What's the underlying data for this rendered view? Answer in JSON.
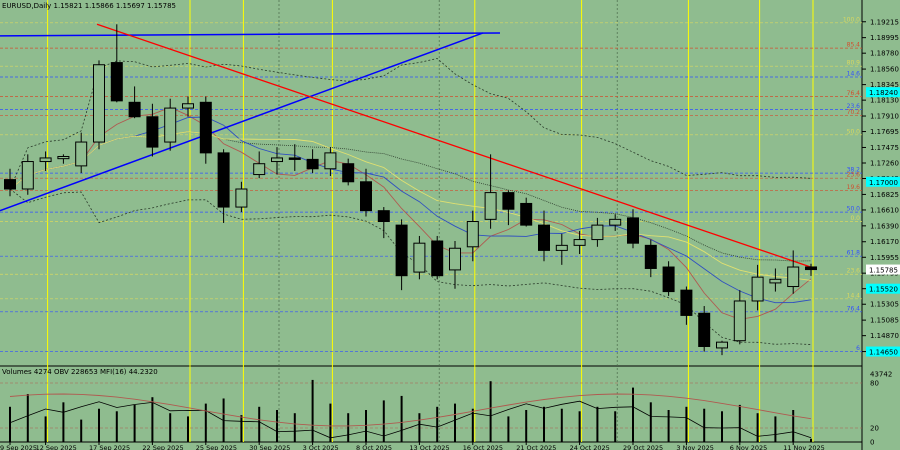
{
  "header": {
    "symbol_line": "EURUSD,Daily  1.15821 1.15866 1.15697 1.15785",
    "indicator_line": "Volumes 4274  OBV 228653  MFI(16) 44.2320"
  },
  "colors": {
    "background": "#8fbc8f",
    "bull_candle": "#8fbc8f",
    "bear_candle": "#000000",
    "red_trendline": "#ff0000",
    "blue_trendline": "#0000ff",
    "date_vline": "#ffff00",
    "price_highlight": "#00ffff"
  },
  "chart_data": {
    "type": "candlestick",
    "title": "EURUSD,Daily",
    "ohlc_last": {
      "open": 1.15821,
      "high": 1.15866,
      "low": 1.15697,
      "close": 1.15785
    },
    "y_axis_ticks": [
      "1.19215",
      "1.18995",
      "1.18780",
      "1.18560",
      "1.18345",
      "1.18130",
      "1.17910",
      "1.17695",
      "1.17475",
      "1.17260",
      "1.17045",
      "1.16825",
      "1.16610",
      "1.16390",
      "1.16170",
      "1.15955",
      "1.15735",
      "1.15520",
      "1.15305",
      "1.15085",
      "1.14870",
      "1.14650"
    ],
    "ylim": [
      1.1445,
      1.1935
    ],
    "highlighted_prices": [
      "1.18240",
      "1.17000",
      "1.15785",
      "1.15520",
      "1.14650"
    ],
    "x_axis_ticks": [
      "9 Sep 2025",
      "12 Sep 2025",
      "17 Sep 2025",
      "22 Sep 2025",
      "25 Sep 2025",
      "30 Sep 2025",
      "3 Oct 2025",
      "8 Oct 2025",
      "13 Oct 2025",
      "16 Oct 2025",
      "21 Oct 2025",
      "24 Oct 2025",
      "29 Oct 2025",
      "3 Nov 2025",
      "6 Nov 2025",
      "11 Nov 2025"
    ],
    "candles": [
      {
        "o": 1.1703,
        "h": 1.1718,
        "l": 1.168,
        "c": 1.169
      },
      {
        "o": 1.169,
        "h": 1.1738,
        "l": 1.1682,
        "c": 1.1728
      },
      {
        "o": 1.1728,
        "h": 1.1742,
        "l": 1.1715,
        "c": 1.1733
      },
      {
        "o": 1.1732,
        "h": 1.1738,
        "l": 1.1725,
        "c": 1.1735
      },
      {
        "o": 1.1722,
        "h": 1.1768,
        "l": 1.1712,
        "c": 1.1755
      },
      {
        "o": 1.1755,
        "h": 1.1868,
        "l": 1.1745,
        "c": 1.1862
      },
      {
        "o": 1.1865,
        "h": 1.1918,
        "l": 1.181,
        "c": 1.1812
      },
      {
        "o": 1.181,
        "h": 1.1832,
        "l": 1.1788,
        "c": 1.179
      },
      {
        "o": 1.179,
        "h": 1.1808,
        "l": 1.1735,
        "c": 1.1748
      },
      {
        "o": 1.1755,
        "h": 1.1815,
        "l": 1.1743,
        "c": 1.1802
      },
      {
        "o": 1.1802,
        "h": 1.1818,
        "l": 1.179,
        "c": 1.1808
      },
      {
        "o": 1.181,
        "h": 1.1818,
        "l": 1.1725,
        "c": 1.174
      },
      {
        "o": 1.174,
        "h": 1.1745,
        "l": 1.1643,
        "c": 1.1665
      },
      {
        "o": 1.1665,
        "h": 1.17,
        "l": 1.1658,
        "c": 1.169
      },
      {
        "o": 1.171,
        "h": 1.1742,
        "l": 1.1705,
        "c": 1.1725
      },
      {
        "o": 1.1728,
        "h": 1.1748,
        "l": 1.171,
        "c": 1.1733
      },
      {
        "o": 1.1733,
        "h": 1.1752,
        "l": 1.1715,
        "c": 1.1731
      },
      {
        "o": 1.1731,
        "h": 1.1745,
        "l": 1.1712,
        "c": 1.1718
      },
      {
        "o": 1.1718,
        "h": 1.1748,
        "l": 1.1708,
        "c": 1.174
      },
      {
        "o": 1.1725,
        "h": 1.1732,
        "l": 1.1695,
        "c": 1.17
      },
      {
        "o": 1.17,
        "h": 1.1718,
        "l": 1.1652,
        "c": 1.166
      },
      {
        "o": 1.166,
        "h": 1.1665,
        "l": 1.1622,
        "c": 1.1645
      },
      {
        "o": 1.164,
        "h": 1.1648,
        "l": 1.155,
        "c": 1.157
      },
      {
        "o": 1.1575,
        "h": 1.1625,
        "l": 1.1565,
        "c": 1.1615
      },
      {
        "o": 1.1618,
        "h": 1.1625,
        "l": 1.1565,
        "c": 1.157
      },
      {
        "o": 1.1578,
        "h": 1.1618,
        "l": 1.1552,
        "c": 1.1608
      },
      {
        "o": 1.161,
        "h": 1.166,
        "l": 1.159,
        "c": 1.1645
      },
      {
        "o": 1.1648,
        "h": 1.1738,
        "l": 1.1635,
        "c": 1.1685
      },
      {
        "o": 1.1685,
        "h": 1.1688,
        "l": 1.164,
        "c": 1.1662
      },
      {
        "o": 1.167,
        "h": 1.1678,
        "l": 1.1638,
        "c": 1.164
      },
      {
        "o": 1.164,
        "h": 1.166,
        "l": 1.159,
        "c": 1.1605
      },
      {
        "o": 1.1605,
        "h": 1.1628,
        "l": 1.1585,
        "c": 1.1612
      },
      {
        "o": 1.1612,
        "h": 1.1632,
        "l": 1.16,
        "c": 1.162
      },
      {
        "o": 1.162,
        "h": 1.165,
        "l": 1.161,
        "c": 1.164
      },
      {
        "o": 1.164,
        "h": 1.1655,
        "l": 1.1632,
        "c": 1.1648
      },
      {
        "o": 1.165,
        "h": 1.1662,
        "l": 1.1608,
        "c": 1.1615
      },
      {
        "o": 1.1612,
        "h": 1.162,
        "l": 1.1568,
        "c": 1.158
      },
      {
        "o": 1.1582,
        "h": 1.159,
        "l": 1.1542,
        "c": 1.1548
      },
      {
        "o": 1.155,
        "h": 1.1555,
        "l": 1.1502,
        "c": 1.1515
      },
      {
        "o": 1.1518,
        "h": 1.1528,
        "l": 1.1465,
        "c": 1.1472
      },
      {
        "o": 1.147,
        "h": 1.148,
        "l": 1.146,
        "c": 1.1478
      },
      {
        "o": 1.148,
        "h": 1.155,
        "l": 1.1475,
        "c": 1.1535
      },
      {
        "o": 1.1535,
        "h": 1.1585,
        "l": 1.1522,
        "c": 1.1568
      },
      {
        "o": 1.156,
        "h": 1.158,
        "l": 1.1548,
        "c": 1.1565
      },
      {
        "o": 1.1555,
        "h": 1.1605,
        "l": 1.1545,
        "c": 1.1582
      },
      {
        "o": 1.15821,
        "h": 1.15866,
        "l": 1.15697,
        "c": 1.15785
      }
    ],
    "fib_levels": [
      {
        "label": "100.0",
        "price": 1.192,
        "color": "#d8d860"
      },
      {
        "label": "85.4",
        "price": 1.1885,
        "color": "#d05030"
      },
      {
        "label": "80.9",
        "price": 1.186,
        "color": "#d8d860"
      },
      {
        "label": "14.6",
        "price": 1.1845,
        "color": "#3050ff"
      },
      {
        "label": "76.4",
        "price": 1.1818,
        "color": "#d05030"
      },
      {
        "label": "23.6",
        "price": 1.18,
        "color": "#3050ff"
      },
      {
        "label": "70.2",
        "price": 1.1792,
        "color": "#d05030"
      },
      {
        "label": "50.0",
        "price": 1.1765,
        "color": "#d8d860"
      },
      {
        "label": "38.2",
        "price": 1.1712,
        "color": "#3050ff"
      },
      {
        "label": "23.6",
        "price": 1.1705,
        "color": "#d05030"
      },
      {
        "label": "19.6",
        "price": 1.1688,
        "color": "#d05030"
      },
      {
        "label": "50.0",
        "price": 1.1658,
        "color": "#3050ff"
      },
      {
        "label": "0.0",
        "price": 1.1645,
        "color": "#d8d860"
      },
      {
        "label": "61.8",
        "price": 1.1597,
        "color": "#3050ff"
      },
      {
        "label": "23.6",
        "price": 1.1572,
        "color": "#d8d860"
      },
      {
        "label": "14.4",
        "price": 1.1538,
        "color": "#d8d860"
      },
      {
        "label": "76.4",
        "price": 1.152,
        "color": "#3050ff"
      },
      {
        "label": "6",
        "price": 1.1465,
        "color": "#3050ff"
      }
    ],
    "volume_axis_ticks": [
      "43742",
      "80",
      "20",
      "0"
    ],
    "volume_values": [
      0.55,
      0.75,
      0.4,
      0.62,
      0.35,
      0.52,
      0.48,
      0.58,
      0.7,
      0.45,
      0.4,
      0.6,
      0.68,
      0.42,
      0.55,
      0.5,
      0.45,
      0.97,
      0.6,
      0.45,
      0.5,
      0.65,
      0.72,
      0.45,
      0.55,
      0.6,
      0.52,
      0.95,
      0.4,
      0.5,
      0.55,
      0.52,
      0.48,
      0.55,
      0.48,
      0.85,
      0.62,
      0.5,
      0.55,
      0.52,
      0.48,
      0.58,
      0.45,
      0.4,
      0.5,
      0.05
    ]
  }
}
